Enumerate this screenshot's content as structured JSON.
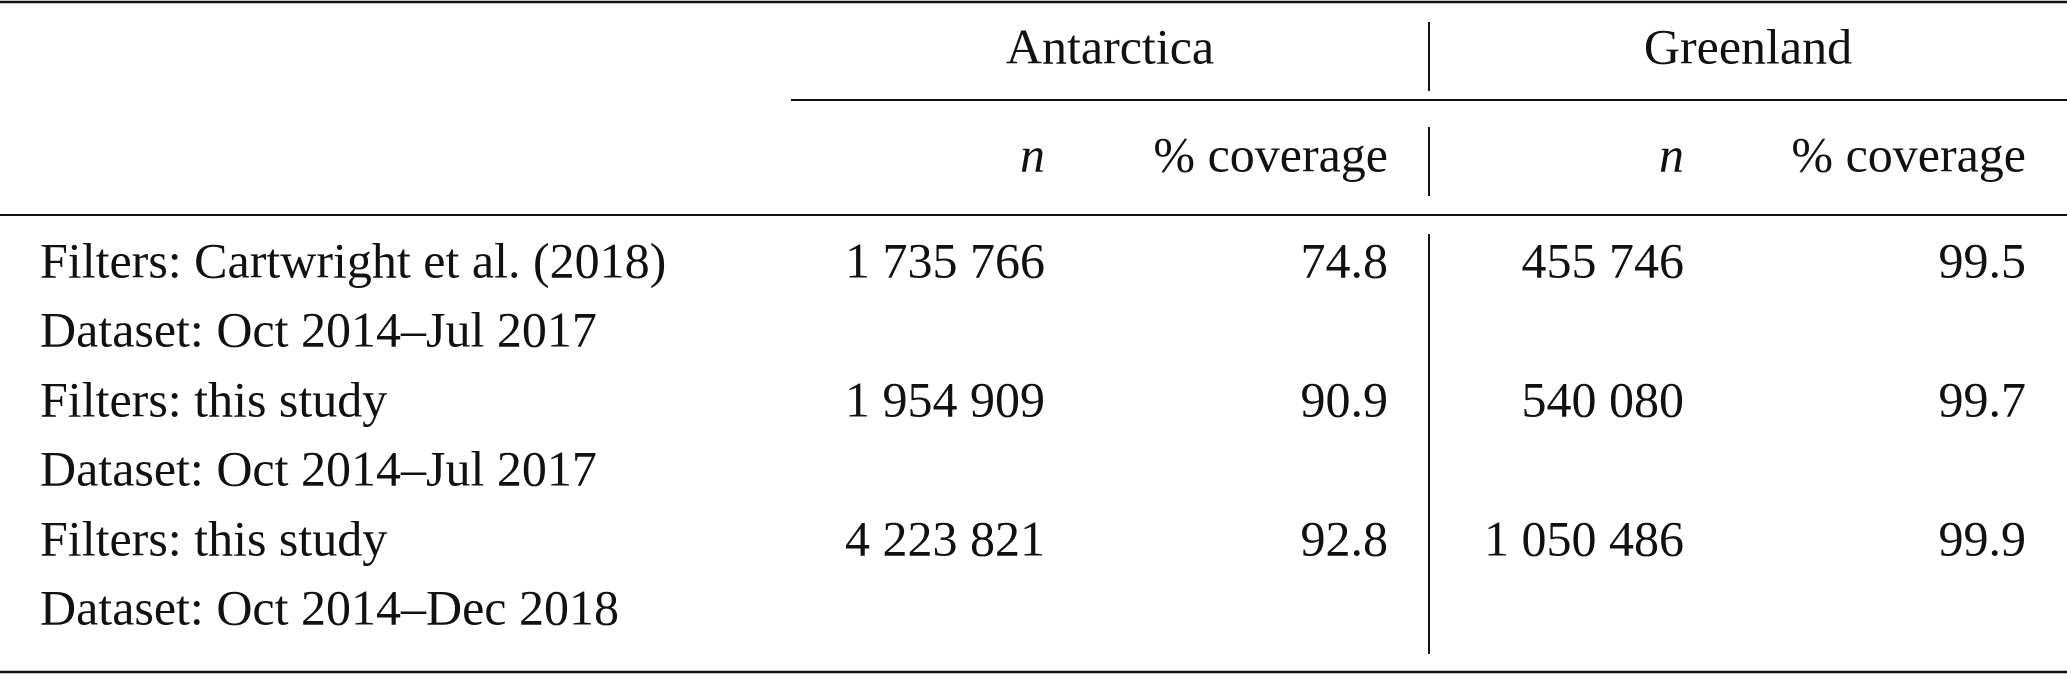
{
  "table": {
    "groups": [
      "Antarctica",
      "Greenland"
    ],
    "columns": [
      "n",
      "% coverage",
      "n",
      "% coverage"
    ],
    "rows": [
      {
        "filters": "Filters: Cartwright et al. (2018)",
        "dataset": "Dataset: Oct 2014–Jul 2017",
        "values": [
          "1 735 766",
          74.8,
          "455 746",
          99.5
        ]
      },
      {
        "filters": "Filters: this study",
        "dataset": "Dataset: Oct 2014–Jul 2017",
        "values": [
          "1 954 909",
          90.9,
          "540 080",
          99.7
        ]
      },
      {
        "filters": "Filters: this study",
        "dataset": "Dataset: Oct 2014–Dec 2018",
        "values": [
          "4 223 821",
          92.8,
          "1 050 486",
          99.9
        ]
      }
    ]
  }
}
